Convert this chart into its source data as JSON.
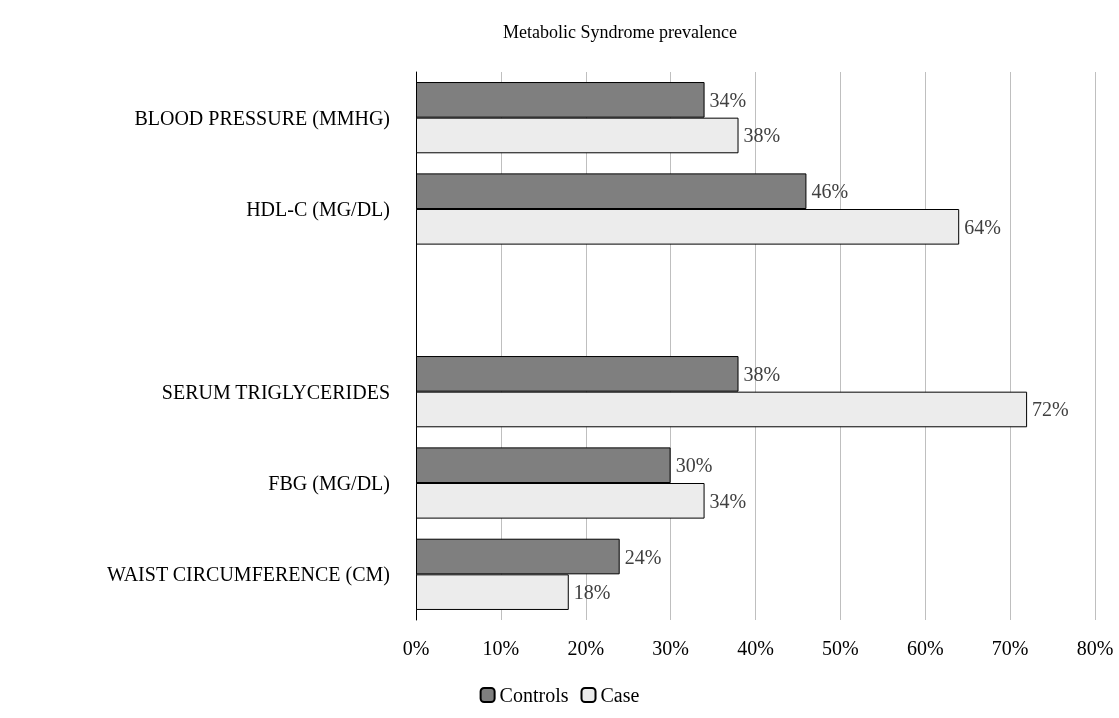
{
  "chart_data": {
    "type": "bar",
    "orientation": "horizontal",
    "title": "Metabolic Syndrome prevalence",
    "categories": [
      "BLOOD PRESSURE (MMHG)",
      "HDL-C (MG/DL)",
      null,
      "SERUM TRIGLYCERIDES",
      "FBG (MG/DL)",
      "WAIST CIRCUMFERENCE (CM)"
    ],
    "series": [
      {
        "name": "Controls",
        "color": "#7f7f7f",
        "values": [
          34,
          46,
          null,
          38,
          30,
          24
        ],
        "value_labels": [
          "34%",
          "46%",
          null,
          "38%",
          "30%",
          "24%"
        ]
      },
      {
        "name": "Case",
        "color": "#ececec",
        "values": [
          38,
          64,
          null,
          72,
          34,
          18
        ],
        "value_labels": [
          "38%",
          "64%",
          null,
          "72%",
          "34%",
          "18%"
        ]
      }
    ],
    "xlim": [
      0,
      80
    ],
    "xticks": [
      {
        "value": 0,
        "label": "0%"
      },
      {
        "value": 10,
        "label": "10%"
      },
      {
        "value": 20,
        "label": "20%"
      },
      {
        "value": 30,
        "label": "30%"
      },
      {
        "value": 40,
        "label": "40%"
      },
      {
        "value": 50,
        "label": "50%"
      },
      {
        "value": 60,
        "label": "60%"
      },
      {
        "value": 70,
        "label": "70%"
      },
      {
        "value": 80,
        "label": "80%"
      }
    ],
    "grid": "x",
    "legend": "bottom"
  }
}
